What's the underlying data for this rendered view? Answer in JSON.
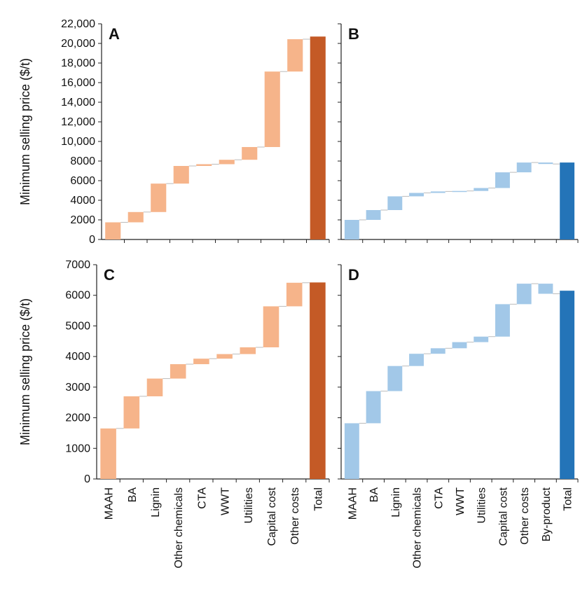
{
  "chart_data": [
    {
      "panel": "A",
      "type": "waterfall",
      "ylabel": "Minimum selling price ($/t)",
      "ylim": [
        0,
        22000
      ],
      "yticks": [
        "0",
        "2000",
        "4000",
        "6000",
        "8000",
        "10,000",
        "12,000",
        "14,000",
        "16,000",
        "18,000",
        "20,000",
        "22,000"
      ],
      "categories": [
        "MAAH",
        "BA",
        "Lignin",
        "Other chemicals",
        "CTA",
        "WWT",
        "Utilities",
        "Capital cost",
        "Other costs",
        "Total"
      ],
      "values": [
        1750,
        1050,
        2900,
        1800,
        180,
        450,
        1300,
        7700,
        3300,
        20700
      ],
      "step_color": "#F6B48A",
      "total_color": "#C45A26"
    },
    {
      "panel": "B",
      "type": "waterfall",
      "ylim": [
        0,
        22000
      ],
      "categories": [
        "MAAH",
        "BA",
        "Lignin",
        "Other chemicals",
        "CTA",
        "WWT",
        "Utilities",
        "Capital cost",
        "Other costs",
        "By-product",
        "Total"
      ],
      "values": [
        2000,
        1000,
        1400,
        350,
        150,
        50,
        300,
        1600,
        1000,
        -150,
        7850
      ],
      "step_color": "#A2C8E8",
      "total_color": "#2474B8"
    },
    {
      "panel": "C",
      "type": "waterfall",
      "ylabel": "Minimum selling price ($/t)",
      "ylim": [
        0,
        7000
      ],
      "yticks": [
        "0",
        "1000",
        "2000",
        "3000",
        "4000",
        "5000",
        "6000",
        "7000"
      ],
      "categories": [
        "MAAH",
        "BA",
        "Lignin",
        "Other chemicals",
        "CTA",
        "WWT",
        "Utilities",
        "Capital cost",
        "Other costs",
        "Total"
      ],
      "values": [
        1650,
        1050,
        580,
        470,
        180,
        150,
        220,
        1340,
        770,
        6420
      ],
      "step_color": "#F6B48A",
      "total_color": "#C45A26"
    },
    {
      "panel": "D",
      "type": "waterfall",
      "ylim": [
        0,
        7000
      ],
      "categories": [
        "MAAH",
        "BA",
        "Lignin",
        "Other chemicals",
        "CTA",
        "WWT",
        "Utilities",
        "Capital cost",
        "Other costs",
        "By-product",
        "Total"
      ],
      "values": [
        1820,
        1050,
        820,
        400,
        180,
        200,
        180,
        1060,
        670,
        -330,
        6150
      ],
      "step_color": "#A2C8E8",
      "total_color": "#2474B8"
    }
  ]
}
